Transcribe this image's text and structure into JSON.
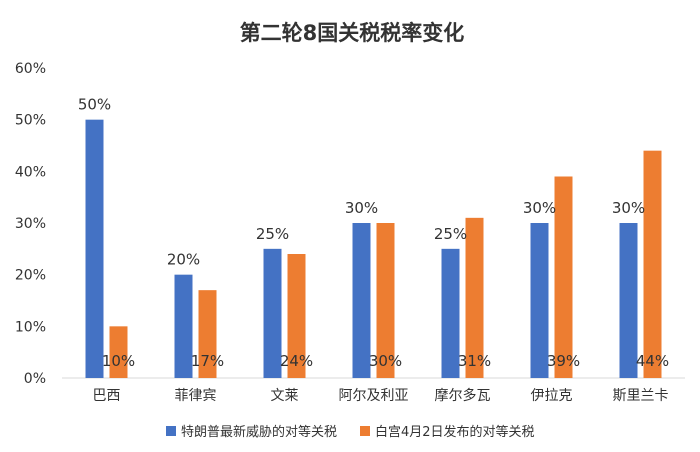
{
  "chart_data": {
    "type": "bar",
    "title": "第二轮8国关税税率变化",
    "categories": [
      "巴西",
      "菲律宾",
      "文莱",
      "阿尔及利亚",
      "摩尔多瓦",
      "伊拉克",
      "斯里兰卡"
    ],
    "series": [
      {
        "name": "特朗普最新威胁的对等关税",
        "values": [
          50,
          20,
          25,
          30,
          25,
          30,
          30
        ],
        "color": "#4472C4"
      },
      {
        "name": "白宫4月2日发布的对等关税",
        "values": [
          10,
          17,
          24,
          30,
          31,
          39,
          44
        ],
        "color": "#ED7D31"
      }
    ],
    "series_labels": [
      [
        "50%",
        "20%",
        "25%",
        "30%",
        "25%",
        "30%",
        "30%"
      ],
      [
        "10%",
        "17%",
        "24%",
        "30%",
        "31%",
        "39%",
        "44%"
      ]
    ],
    "y_ticks": [
      "0%",
      "10%",
      "20%",
      "30%",
      "40%",
      "50%",
      "60%"
    ],
    "ylim": [
      0,
      60
    ],
    "xlabel": "",
    "ylabel": "",
    "grid": false,
    "legend_position": "bottom"
  }
}
